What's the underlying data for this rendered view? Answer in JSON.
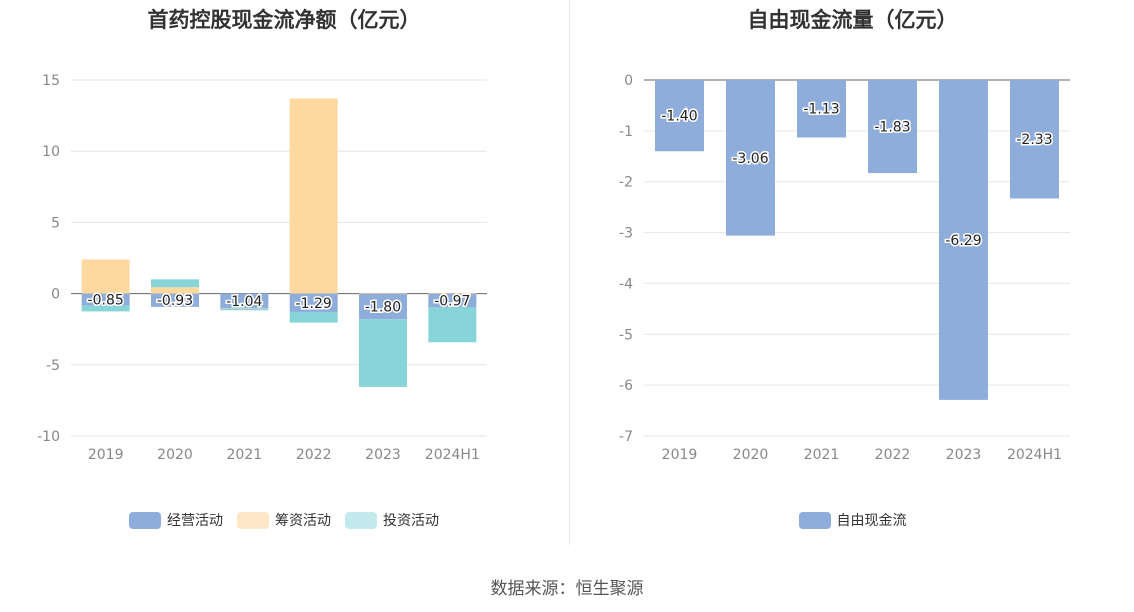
{
  "chart_data": [
    {
      "type": "bar",
      "stacked": true,
      "title": "首药控股现金流净额（亿元）",
      "categories": [
        "2019",
        "2020",
        "2021",
        "2022",
        "2023",
        "2024H1"
      ],
      "ylim": [
        -10,
        15
      ],
      "yticks": [
        "15",
        "10",
        "5",
        "0",
        "-5",
        "-10"
      ],
      "grid": true,
      "legend_position": "bottom",
      "series": [
        {
          "name": "经营活动",
          "color": "#8eaddb",
          "values": [
            -0.85,
            -0.93,
            -1.04,
            -1.29,
            -1.8,
            -0.97
          ],
          "labels": [
            "-0.85",
            "-0.93",
            "-1.04",
            "-1.29",
            "-1.80",
            "-0.97"
          ]
        },
        {
          "name": "筹资活动",
          "color": "#fdd9a0",
          "values": [
            2.4,
            0.45,
            -0.03,
            13.7,
            0.05,
            0.05
          ]
        },
        {
          "name": "投资活动",
          "color": "#87d5d8",
          "values": [
            -0.4,
            0.55,
            -0.1,
            -0.75,
            -4.75,
            -2.45
          ]
        }
      ],
      "legend_colors": [
        "#8eaddb",
        "#fde7c7",
        "#c3ebed"
      ]
    },
    {
      "type": "bar",
      "title": "自由现金流量（亿元）",
      "categories": [
        "2019",
        "2020",
        "2021",
        "2022",
        "2023",
        "2024H1"
      ],
      "ylim": [
        -7,
        0
      ],
      "yticks": [
        "0",
        "-1",
        "-2",
        "-3",
        "-4",
        "-5",
        "-6",
        "-7"
      ],
      "grid": true,
      "legend_position": "bottom",
      "series": [
        {
          "name": "自由现金流",
          "color": "#8eaddb",
          "values": [
            -1.4,
            -3.06,
            -1.13,
            -1.83,
            -6.29,
            -2.33
          ],
          "labels": [
            "-1.40",
            "-3.06",
            "-1.13",
            "-1.83",
            "-6.29",
            "-2.33"
          ]
        }
      ]
    }
  ],
  "source": "数据来源：恒生聚源"
}
